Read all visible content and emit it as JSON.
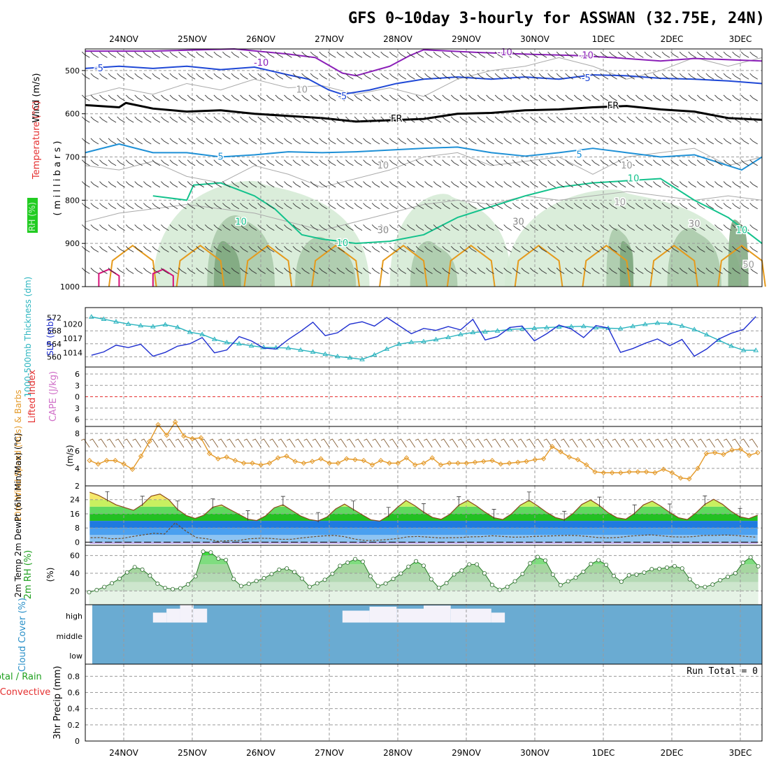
{
  "title": "GFS 0~10day 3-hourly for ASSWAN (32.75E, 24N)",
  "colors": {
    "wind_purple": "#8b1fb8",
    "blue_m5": "#1f48d6",
    "fr_black": "#000000",
    "sky_5": "#1e90d6",
    "green_10": "#13c28c",
    "orange": "#e59a1c",
    "magenta": "#d8127a",
    "rh_light": "#d4ead4",
    "rh_mid": "#a8c8a8",
    "rh_dark": "#7da67d",
    "slp_blue": "#1f2fd0",
    "thick_cyan": "#2ab4bf",
    "lifted_red": "#e53030",
    "wind10": "#e49a2a",
    "barb_brown": "#7a5024",
    "cloud": "#6aabd2",
    "rh2m_green": "#35d435"
  },
  "chart_data": [
    {
      "panel": "upper_air",
      "type": "contour",
      "ylabel_parts": [
        "Wind (m/s)",
        "Temperature (°C)",
        "RH (%)"
      ],
      "ylabel_unit": "( m i l l i b a r s )",
      "yticks": [
        "500",
        "600",
        "700",
        "800",
        "900",
        "1000"
      ],
      "ylim": [
        450,
        1000
      ],
      "contour_labels": [
        "-10",
        "-10",
        "-10",
        "-5",
        "-5",
        "-5",
        "FR",
        "FR",
        "5",
        "5",
        "10",
        "10",
        "10",
        "10",
        "30",
        "30",
        "30",
        "10",
        "10",
        "10",
        "10",
        "50"
      ]
    },
    {
      "panel": "slp_thickness",
      "type": "line",
      "ylabel_left": "1000-500mb Thickness (dm)",
      "ylabel_right": "SLP (mb)",
      "yticks_left": [
        "572",
        "568",
        "564",
        "560"
      ],
      "yticks_right": [
        "1020",
        "1017",
        "1014"
      ],
      "series": [
        {
          "name": "SLP (mb)",
          "values": [
            1013.5,
            1014.2,
            1015.6,
            1015.1,
            1015.8,
            1013.3,
            1014.1,
            1015.4,
            1015.9,
            1017.2,
            1014.0,
            1014.6,
            1017.4,
            1016.5,
            1015.0,
            1014.8,
            1016.8,
            1018.5,
            1020.4,
            1017.6,
            1018.2,
            1020.0,
            1020.5,
            1019.6,
            1021.4,
            1019.7,
            1018.0,
            1019.1,
            1018.7,
            1019.5,
            1018.8,
            1021.0,
            1016.7,
            1017.4,
            1019.3,
            1019.6,
            1016.5,
            1018.0,
            1019.8,
            1019.0,
            1017.2,
            1019.7,
            1019.2,
            1014.1,
            1014.9,
            1016.0,
            1016.9,
            1015.5,
            1016.8,
            1013.3,
            1014.8,
            1016.9,
            1018.1,
            1018.9,
            1021.6
          ]
        },
        {
          "name": "1000-500mb Thickness (dm)",
          "values": [
            572.3,
            571.6,
            570.8,
            570.1,
            569.6,
            569.3,
            569.9,
            569.1,
            567.6,
            566.9,
            565.4,
            564.4,
            564.0,
            563.4,
            562.9,
            562.8,
            562.7,
            562.1,
            561.5,
            560.8,
            560.1,
            559.7,
            559.2,
            560.6,
            562.4,
            563.9,
            564.5,
            564.7,
            565.3,
            566.0,
            566.9,
            567.5,
            567.7,
            568.0,
            568.4,
            568.6,
            568.8,
            569.0,
            569.2,
            569.3,
            569.4,
            569.0,
            568.8,
            568.7,
            569.4,
            570.0,
            570.4,
            570.3,
            569.5,
            568.4,
            566.8,
            565.1,
            563.3,
            562.0,
            562.0
          ]
        }
      ]
    },
    {
      "panel": "stability",
      "type": "line",
      "ylabel_left": "Lifted Index",
      "ylabel_right": "CAPE (J/kg)",
      "yticks": [
        "6",
        "3",
        "0",
        "3",
        "6"
      ]
    },
    {
      "panel": "wind10m",
      "type": "line",
      "ylabel": "10m Wind Speed (m/s) & Barbs",
      "yticks": [
        "8",
        "6",
        "4",
        "2"
      ],
      "series": [
        {
          "name": "10m Wind Speed",
          "values": [
            4.9,
            4.5,
            4.9,
            4.9,
            4.5,
            3.9,
            5.4,
            7.1,
            9.0,
            7.8,
            9.3,
            7.7,
            7.4,
            7.5,
            5.7,
            5.1,
            5.3,
            4.9,
            4.6,
            4.6,
            4.4,
            4.6,
            5.2,
            5.4,
            4.8,
            4.6,
            4.8,
            5.1,
            4.6,
            4.6,
            5.1,
            5.0,
            4.9,
            4.4,
            4.9,
            4.6,
            4.6,
            5.2,
            4.4,
            4.6,
            5.2,
            4.4,
            4.6,
            4.6,
            4.6,
            4.7,
            4.8,
            4.9,
            4.5,
            4.6,
            4.7,
            4.8,
            5.0,
            5.1,
            6.5,
            5.9,
            5.3,
            5.0,
            4.4,
            3.6,
            3.5,
            3.5,
            3.5,
            3.6,
            3.6,
            3.6,
            3.5,
            3.9,
            3.5,
            2.9,
            2.8,
            4.0,
            5.7,
            5.8,
            5.6,
            6.1,
            6.2,
            5.5,
            5.8
          ]
        }
      ]
    },
    {
      "panel": "temperature",
      "type": "area",
      "ylabel": "2m Temp 2m DewPt (6hr Min/Max) (°C)",
      "yticks": [
        "24",
        "16",
        "8",
        "0"
      ],
      "series": [
        {
          "name": "2m Temp",
          "values": [
            28.2,
            26.5,
            23.8,
            21.1,
            19.5,
            18.0,
            21.2,
            26.0,
            27.2,
            24.0,
            18.5,
            15.0,
            13.4,
            15.2,
            19.7,
            21.0,
            18.3,
            15.7,
            13.0,
            12.2,
            14.8,
            19.4,
            21.1,
            17.9,
            14.8,
            12.8,
            12.0,
            14.2,
            18.8,
            21.5,
            18.5,
            15.5,
            12.6,
            11.9,
            14.9,
            19.6,
            23.5,
            20.6,
            17.0,
            14.0,
            12.9,
            15.8,
            20.9,
            23.5,
            20.5,
            16.9,
            13.8,
            12.8,
            16.0,
            20.9,
            23.6,
            20.4,
            16.8,
            13.9,
            12.7,
            16.2,
            21.3,
            23.8,
            20.7,
            16.6,
            13.8,
            13.0,
            16.3,
            21.0,
            23.2,
            20.3,
            16.8,
            13.8,
            12.8,
            16.6,
            21.4,
            24.2,
            21.4,
            17.4,
            14.3,
            13.3,
            15.2
          ]
        },
        {
          "name": "2m DewPt",
          "values": [
            2.5,
            2.6,
            1.9,
            2.1,
            3.2,
            4.1,
            5.0,
            4.6,
            10.9,
            6.3,
            2.6,
            1.9,
            0.5,
            0.8,
            0.9,
            1.9,
            2.2,
            2.1,
            1.6,
            1.6,
            2.4,
            3.0,
            3.5,
            3.8,
            3.1,
            1.7,
            0.9,
            1.0,
            1.4,
            2.0,
            3.0,
            3.2,
            2.8,
            2.4,
            2.5,
            2.6,
            3.0,
            3.1,
            3.6,
            3.2,
            2.8,
            2.9,
            3.2,
            3.4,
            3.6,
            3.8,
            3.7,
            3.2,
            2.6,
            2.4,
            2.7,
            3.4,
            3.8,
            4.1,
            3.6,
            3.0,
            2.9,
            3.1,
            3.8,
            3.8,
            4.0,
            3.8,
            3.2,
            2.8
          ]
        }
      ]
    },
    {
      "panel": "rh2m",
      "type": "area",
      "ylabel": "2m RH (%)",
      "yticks": [
        "60",
        "40",
        "20"
      ],
      "series": [
        {
          "name": "2m RH",
          "values": [
            18.5,
            21.0,
            24.5,
            28.7,
            33.8,
            41.0,
            46.9,
            44.1,
            37.3,
            28.2,
            23.4,
            22.0,
            23.0,
            27.4,
            36.5,
            64.4,
            63.5,
            56.5,
            55.0,
            33.5,
            25.5,
            28.0,
            31.2,
            34.4,
            39.0,
            44.0,
            45.4,
            41.4,
            34.0,
            24.6,
            28.6,
            32.6,
            39.4,
            48.4,
            52.0,
            56.0,
            53.1,
            36.6,
            25.5,
            28.4,
            33.6,
            39.6,
            47.4,
            53.6,
            48.5,
            33.2,
            23.6,
            28.8,
            38.7,
            43.0,
            50.0,
            50.0,
            39.9,
            26.8,
            21.3,
            24.6,
            30.9,
            39.2,
            51.3,
            58.4,
            54.4,
            38.5,
            26.6,
            30.9,
            35.0,
            41.7,
            50.5,
            54.6,
            49.6,
            37.0,
            30.4,
            37.7,
            38.4,
            40.8,
            44.6,
            45.0,
            46.4,
            48.0,
            45.4,
            33.2,
            25.1,
            24.5,
            27.2,
            32.2,
            35.9,
            40.0,
            52.0,
            58.0,
            47.9
          ]
        }
      ]
    },
    {
      "panel": "cloud_cover",
      "type": "heatmap",
      "ylabel": "Cloud Cover (%)",
      "yticks": [
        "high",
        "middle",
        "low"
      ]
    },
    {
      "panel": "precip",
      "type": "bar",
      "ylabel_parts": [
        "Total / Rain",
        "Convective",
        "3hr Precip (mm)"
      ],
      "yticks": [
        "0.8",
        "0.6",
        "0.4",
        "0.2",
        "0"
      ],
      "ylim": [
        0,
        0.95
      ],
      "run_total": "Run Total = 0"
    }
  ],
  "xaxis": {
    "dates": [
      "24NOV",
      "25NOV",
      "26NOV",
      "27NOV",
      "28NOV",
      "29NOV",
      "30NOV",
      "1DEC",
      "2DEC",
      "3DEC"
    ]
  }
}
